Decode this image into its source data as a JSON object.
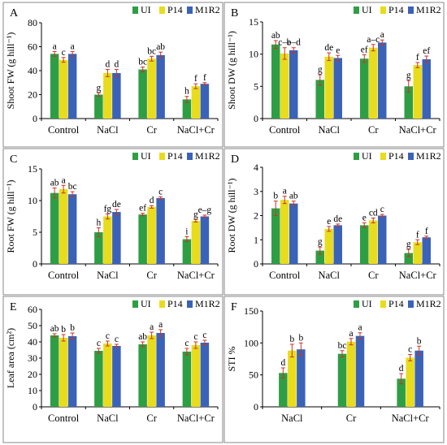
{
  "figure": {
    "legend": [
      "UI",
      "P14",
      "M1R2"
    ],
    "colors": {
      "UI": "#2e9e44",
      "P14": "#e8dc1c",
      "M1R2": "#3a63b8",
      "error": "#cc3322"
    }
  },
  "chart_data": [
    {
      "type": "bar",
      "panel": "A",
      "ylabel": "Shoot FW (g hill⁻¹)",
      "categories": [
        "Control",
        "NaCl",
        "Cr",
        "NaCl+Cr"
      ],
      "ylim": [
        0,
        80
      ],
      "yticks": [
        0,
        20,
        40,
        60,
        80
      ],
      "series": [
        {
          "name": "UI",
          "values": [
            54,
            20,
            41,
            16
          ],
          "errors": [
            2,
            1.5,
            2,
            2.5
          ],
          "letters": [
            "a",
            "g",
            "bc",
            "h"
          ]
        },
        {
          "name": "P14",
          "values": [
            49,
            38,
            50,
            27
          ],
          "errors": [
            2,
            3,
            2,
            2
          ],
          "letters": [
            "c",
            "d",
            "bc",
            "f"
          ]
        },
        {
          "name": "M1R2",
          "values": [
            54,
            38,
            53,
            29
          ],
          "errors": [
            2,
            3,
            2.5,
            1
          ],
          "letters": [
            "a",
            "d",
            "ab",
            "f"
          ]
        }
      ]
    },
    {
      "type": "bar",
      "panel": "B",
      "ylabel": "Shoot DW (g hill⁻¹)",
      "categories": [
        "Control",
        "NaCl",
        "Cr",
        "NaCl+Cr"
      ],
      "ylim": [
        0,
        15
      ],
      "yticks": [
        0,
        5,
        10,
        15
      ],
      "series": [
        {
          "name": "UI",
          "values": [
            11.5,
            6,
            9.3,
            5
          ],
          "errors": [
            0.6,
            0.8,
            0.6,
            0.9
          ],
          "letters": [
            "ab",
            "g",
            "ef",
            "g"
          ]
        },
        {
          "name": "P14",
          "values": [
            10.1,
            9.6,
            11,
            8.3
          ],
          "errors": [
            0.9,
            0.6,
            0.5,
            0.4
          ],
          "letters": [
            "c–e",
            "de",
            "a–c",
            "f"
          ]
        },
        {
          "name": "M1R2",
          "values": [
            10.6,
            9.4,
            11.8,
            9.2
          ],
          "errors": [
            0.4,
            0.4,
            0.4,
            0.5
          ],
          "letters": [
            "b–d",
            "e",
            "a",
            "ef"
          ]
        }
      ]
    },
    {
      "type": "bar",
      "panel": "C",
      "ylabel": "Root FW (g hill⁻¹)",
      "categories": [
        "Control",
        "NaCl",
        "Cr",
        "NaCl+Cr"
      ],
      "ylim": [
        0,
        15
      ],
      "yticks": [
        0,
        5,
        10,
        15
      ],
      "series": [
        {
          "name": "UI",
          "values": [
            11.2,
            5,
            7.8,
            3.9
          ],
          "errors": [
            0.8,
            0.7,
            0.2,
            0.4
          ],
          "letters": [
            "ab",
            "h",
            "ef",
            "i"
          ]
        },
        {
          "name": "P14",
          "values": [
            11.8,
            7.5,
            9,
            6.8
          ],
          "errors": [
            0.6,
            0.4,
            0.2,
            0.2
          ],
          "letters": [
            "a",
            "fg",
            "d",
            "g"
          ]
        },
        {
          "name": "M1R2",
          "values": [
            11,
            8.2,
            10.4,
            7.5
          ],
          "errors": [
            0.4,
            0.4,
            0.2,
            0.2
          ],
          "letters": [
            "bc",
            "de",
            "c",
            "e–g"
          ]
        }
      ]
    },
    {
      "type": "bar",
      "panel": "D",
      "ylabel": "Root DW (g hill⁻¹)",
      "categories": [
        "Control",
        "NaCl",
        "Cr",
        "NaCl+Cr"
      ],
      "ylim": [
        0,
        4
      ],
      "yticks": [
        0,
        1,
        2,
        3,
        4
      ],
      "series": [
        {
          "name": "UI",
          "values": [
            2.3,
            0.55,
            1.6,
            0.45
          ],
          "errors": [
            0.3,
            0.15,
            0.1,
            0.15
          ],
          "letters": [
            "b",
            "g",
            "e",
            "g"
          ]
        },
        {
          "name": "P14",
          "values": [
            2.65,
            1.45,
            1.8,
            0.9
          ],
          "errors": [
            0.15,
            0.1,
            0.1,
            0.1
          ],
          "letters": [
            "a",
            "e",
            "cd",
            "f"
          ]
        },
        {
          "name": "M1R2",
          "values": [
            2.5,
            1.6,
            2,
            1.1
          ],
          "errors": [
            0.1,
            0.05,
            0.05,
            0.05
          ],
          "letters": [
            "ab",
            "de",
            "c",
            "f"
          ]
        }
      ]
    },
    {
      "type": "bar",
      "panel": "E",
      "ylabel": "Leaf area (cm²)",
      "categories": [
        "Control",
        "NaCl",
        "Cr",
        "NaCl+Cr"
      ],
      "ylim": [
        0,
        60
      ],
      "yticks": [
        0,
        10,
        20,
        30,
        40,
        50,
        60
      ],
      "series": [
        {
          "name": "UI",
          "values": [
            44,
            34.5,
            38.5,
            34
          ],
          "errors": [
            1,
            1.5,
            1.5,
            2
          ],
          "letters": [
            "ab",
            "c",
            "ab",
            "c"
          ]
        },
        {
          "name": "P14",
          "values": [
            42.5,
            39,
            44,
            38
          ],
          "errors": [
            2,
            1.5,
            2,
            2
          ],
          "letters": [
            "b",
            "c",
            "a",
            "c"
          ]
        },
        {
          "name": "M1R2",
          "values": [
            43.5,
            37.5,
            45.5,
            39.5
          ],
          "errors": [
            2,
            1,
            2,
            1.5
          ],
          "letters": [
            "b",
            "c",
            "a",
            "c"
          ]
        }
      ]
    },
    {
      "type": "bar",
      "panel": "F",
      "ylabel": "STI %",
      "categories": [
        "NaCl",
        "Cr",
        "NaCl+Cr"
      ],
      "ylim": [
        0,
        150
      ],
      "yticks": [
        0,
        50,
        100,
        150
      ],
      "series": [
        {
          "name": "UI",
          "values": [
            53,
            83,
            44
          ],
          "errors": [
            8,
            5,
            8
          ],
          "letters": [
            "d",
            "bc",
            "d"
          ]
        },
        {
          "name": "P14",
          "values": [
            88,
            102,
            77
          ],
          "errors": [
            10,
            5,
            5
          ],
          "letters": [
            "b",
            "a",
            "c"
          ]
        },
        {
          "name": "M1R2",
          "values": [
            90,
            111,
            88
          ],
          "errors": [
            10,
            5,
            7
          ],
          "letters": [
            "b",
            "a",
            "b"
          ]
        }
      ]
    }
  ]
}
